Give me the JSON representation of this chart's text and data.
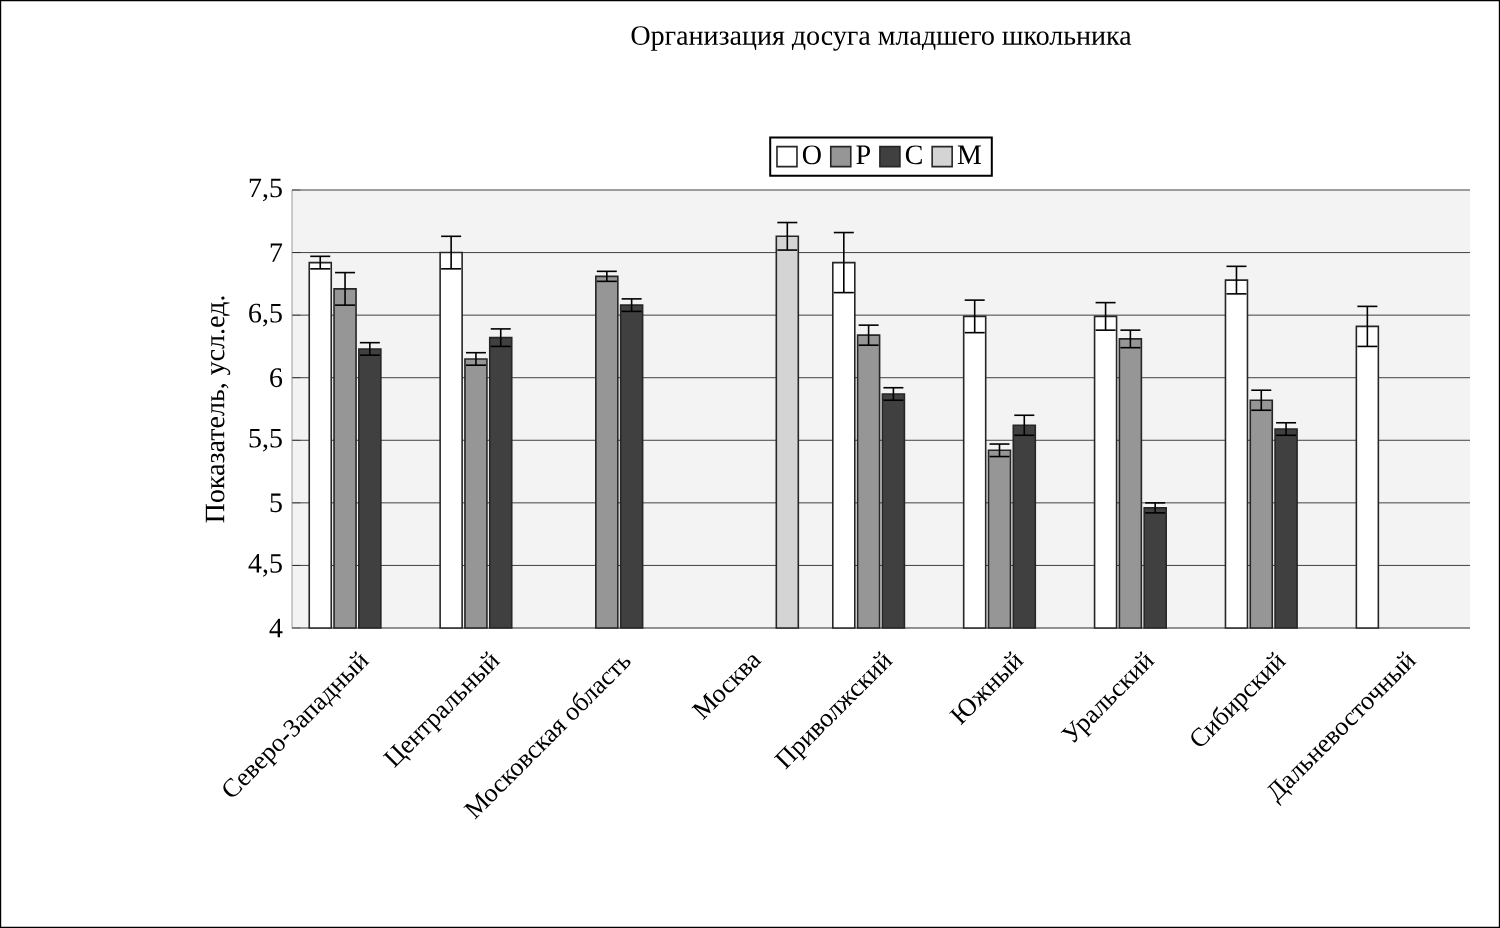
{
  "chart_data": {
    "type": "bar",
    "title": "Организация досуга младшего школьника",
    "ylabel": "Показатель, усл.ед.",
    "categories": [
      "Северо-Западный",
      "Центральный",
      "Московская область",
      "Москва",
      "Приволжский",
      "Южный",
      "Уральский",
      "Сибирский",
      "Дальневосточный"
    ],
    "series": [
      {
        "name": "О",
        "color": "#ffffff",
        "values": [
          6.92,
          7.0,
          null,
          null,
          6.92,
          6.49,
          6.49,
          6.78,
          6.41
        ],
        "errors": [
          0.05,
          0.13,
          null,
          null,
          0.24,
          0.13,
          0.11,
          0.11,
          0.16
        ]
      },
      {
        "name": "Р",
        "color": "#969696",
        "values": [
          6.71,
          6.15,
          6.81,
          null,
          6.34,
          5.42,
          6.31,
          5.82,
          null
        ],
        "errors": [
          0.13,
          0.05,
          0.04,
          null,
          0.08,
          0.05,
          0.07,
          0.08,
          null
        ]
      },
      {
        "name": "С",
        "color": "#404040",
        "values": [
          6.23,
          6.32,
          6.58,
          null,
          5.87,
          5.62,
          4.96,
          5.59,
          null
        ],
        "errors": [
          0.05,
          0.07,
          0.05,
          null,
          0.05,
          0.08,
          0.04,
          0.05,
          null
        ]
      },
      {
        "name": "М",
        "color": "#d4d4d4",
        "values": [
          null,
          null,
          null,
          7.13,
          null,
          null,
          null,
          null,
          null
        ],
        "errors": [
          null,
          null,
          null,
          0.11,
          null,
          null,
          null,
          null,
          null
        ]
      }
    ],
    "ylim": [
      4,
      7.5
    ],
    "yticks": [
      4,
      {
        "value": 4.5,
        "label": "4,5"
      },
      5,
      {
        "value": 5.5,
        "label": "5,5"
      },
      6,
      {
        "value": 6.5,
        "label": "6,5"
      },
      7,
      {
        "value": 7.5,
        "label": "7,5"
      }
    ],
    "grid": "y",
    "legend": "top"
  }
}
